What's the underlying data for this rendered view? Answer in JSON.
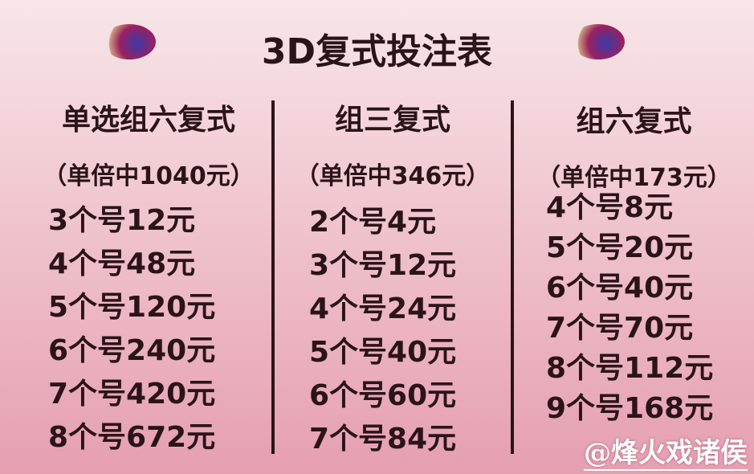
{
  "title": "3D复式投注表",
  "columns": [
    {
      "heading": "单选组六复式",
      "sub": "（单倍中1040元）",
      "rows": [
        "3个号12元",
        "4个号48元",
        "5个号120元",
        "6个号240元",
        "7个号420元",
        "8个号672元"
      ]
    },
    {
      "heading": "组三复式",
      "sub": "（单倍中346元）",
      "rows": [
        "2个号4元",
        "3个号12元",
        "4个号24元",
        "5个号40元",
        "6个号60元",
        "7个号84元"
      ]
    },
    {
      "heading": "组六复式",
      "sub": "（单倍中173元）",
      "rows": [
        "4个号8元",
        "5个号20元",
        "6个号40元",
        "7个号70元",
        "8个号112元",
        "9个号168元"
      ]
    }
  ],
  "watermark": "@烽火戏诸侯"
}
